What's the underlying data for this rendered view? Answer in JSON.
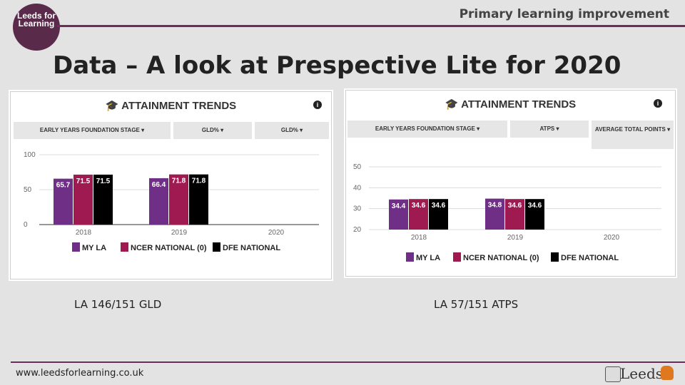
{
  "header": {
    "logo_text": "Leeds for Learning",
    "section_title": "Primary learning improvement"
  },
  "main_title": "Data – A look at Prespective Lite for 2020",
  "colors": {
    "my_la": "#6f2f86",
    "ncer": "#a01a52",
    "dfe": "#000000",
    "accent": "#6b2d5c"
  },
  "panels": [
    {
      "card_title": "ATTAINMENT TRENDS",
      "selectors": [
        "EARLY YEARS FOUNDATION STAGE ▾",
        "GLD% ▾",
        "GLD% ▾"
      ],
      "caption": "LA   146/151 GLD"
    },
    {
      "card_title": "ATTAINMENT TRENDS",
      "selectors": [
        "EARLY YEARS FOUNDATION STAGE ▾",
        "ATPS ▾",
        "AVERAGE TOTAL POINTS ▾"
      ],
      "caption": "LA   57/151 ATPS"
    }
  ],
  "chart_data": [
    {
      "type": "bar",
      "title": "ATTAINMENT TRENDS",
      "categories": [
        "2018",
        "2019",
        "2020"
      ],
      "series": [
        {
          "name": "MY LA",
          "values": [
            65.7,
            66.4,
            null
          ]
        },
        {
          "name": "NCER NATIONAL (0)",
          "values": [
            71.5,
            71.8,
            null
          ]
        },
        {
          "name": "DFE NATIONAL",
          "values": [
            71.5,
            71.8,
            null
          ]
        }
      ],
      "yticks": [
        "0",
        "50",
        "100"
      ],
      "ylim": [
        0,
        100
      ],
      "grid": true,
      "legend": "bottom"
    },
    {
      "type": "bar",
      "title": "ATTAINMENT TRENDS",
      "categories": [
        "2018",
        "2019",
        "2020"
      ],
      "series": [
        {
          "name": "MY LA",
          "values": [
            34.4,
            34.8,
            null
          ]
        },
        {
          "name": "NCER NATIONAL (0)",
          "values": [
            34.6,
            34.6,
            null
          ]
        },
        {
          "name": "DFE NATIONAL",
          "values": [
            34.6,
            34.6,
            null
          ]
        }
      ],
      "yticks": [
        "20",
        "30",
        "40",
        "50"
      ],
      "ylim": [
        20,
        50
      ],
      "grid": true,
      "legend": "bottom"
    }
  ],
  "footer": {
    "url": "www.leedsforlearning.co.uk",
    "council_logo_text": "Leeds"
  }
}
